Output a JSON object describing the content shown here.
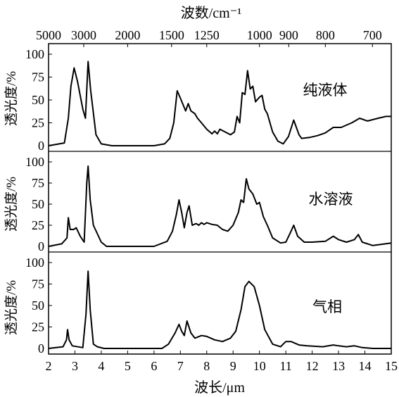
{
  "chart_data": {
    "type": "line",
    "top_axis": {
      "label": "波数/cm⁻¹",
      "ticks": [
        5000,
        3000,
        2000,
        1500,
        1250,
        1000,
        900,
        800,
        700
      ],
      "tick_labels": [
        "5000",
        "3000",
        "2000",
        "1500",
        "1250",
        "1000",
        "900",
        "800",
        "700"
      ]
    },
    "x_axis": {
      "label": "波长/μm",
      "range": [
        2,
        15
      ],
      "ticks": [
        2,
        3,
        4,
        5,
        6,
        7,
        8,
        9,
        10,
        11,
        12,
        13,
        14,
        15
      ],
      "tick_labels": [
        "2",
        "3",
        "4",
        "5",
        "6",
        "7",
        "8",
        "9",
        "10",
        "11",
        "12",
        "13",
        "14",
        "15"
      ]
    },
    "panels": [
      {
        "name": "纯液体",
        "ylabel": "透光度/%",
        "ylim": [
          0,
          100
        ],
        "yticks": [
          0,
          25,
          50,
          75,
          100
        ],
        "ytick_labels": [
          "0",
          "25",
          "50",
          "75",
          "100"
        ],
        "points": [
          [
            2.0,
            0
          ],
          [
            2.6,
            3
          ],
          [
            2.75,
            30
          ],
          [
            2.85,
            65
          ],
          [
            2.97,
            85
          ],
          [
            3.1,
            70
          ],
          [
            3.3,
            40
          ],
          [
            3.4,
            30
          ],
          [
            3.5,
            92
          ],
          [
            3.6,
            60
          ],
          [
            3.8,
            12
          ],
          [
            4.0,
            2
          ],
          [
            4.4,
            0
          ],
          [
            6.0,
            0
          ],
          [
            6.4,
            2
          ],
          [
            6.6,
            8
          ],
          [
            6.75,
            25
          ],
          [
            6.88,
            60
          ],
          [
            7.0,
            52
          ],
          [
            7.2,
            38
          ],
          [
            7.3,
            46
          ],
          [
            7.4,
            38
          ],
          [
            7.55,
            35
          ],
          [
            7.65,
            30
          ],
          [
            7.8,
            25
          ],
          [
            8.0,
            18
          ],
          [
            8.2,
            13
          ],
          [
            8.3,
            16
          ],
          [
            8.4,
            13
          ],
          [
            8.5,
            18
          ],
          [
            8.7,
            15
          ],
          [
            8.9,
            12
          ],
          [
            9.05,
            15
          ],
          [
            9.15,
            32
          ],
          [
            9.25,
            25
          ],
          [
            9.35,
            58
          ],
          [
            9.45,
            56
          ],
          [
            9.55,
            82
          ],
          [
            9.65,
            62
          ],
          [
            9.75,
            65
          ],
          [
            9.85,
            48
          ],
          [
            10.0,
            53
          ],
          [
            10.1,
            55
          ],
          [
            10.2,
            40
          ],
          [
            10.3,
            35
          ],
          [
            10.5,
            15
          ],
          [
            10.7,
            5
          ],
          [
            10.9,
            2
          ],
          [
            11.1,
            10
          ],
          [
            11.3,
            28
          ],
          [
            11.5,
            12
          ],
          [
            11.6,
            8
          ],
          [
            11.9,
            9
          ],
          [
            12.2,
            11
          ],
          [
            12.5,
            14
          ],
          [
            12.8,
            20
          ],
          [
            13.1,
            20
          ],
          [
            13.5,
            25
          ],
          [
            13.8,
            30
          ],
          [
            14.1,
            27
          ],
          [
            14.5,
            30
          ],
          [
            14.8,
            32
          ],
          [
            15.0,
            32
          ]
        ]
      },
      {
        "name": "水溶液",
        "ylabel": "透光度/%",
        "ylim": [
          0,
          100
        ],
        "yticks": [
          0,
          25,
          50,
          75,
          100
        ],
        "ytick_labels": [
          "0",
          "25",
          "50",
          "75",
          "100"
        ],
        "points": [
          [
            2.0,
            0
          ],
          [
            2.5,
            3
          ],
          [
            2.7,
            10
          ],
          [
            2.75,
            34
          ],
          [
            2.82,
            20
          ],
          [
            2.95,
            20
          ],
          [
            3.05,
            22
          ],
          [
            3.2,
            12
          ],
          [
            3.35,
            5
          ],
          [
            3.45,
            75
          ],
          [
            3.5,
            95
          ],
          [
            3.58,
            55
          ],
          [
            3.7,
            25
          ],
          [
            3.85,
            15
          ],
          [
            4.0,
            5
          ],
          [
            4.2,
            0
          ],
          [
            6.0,
            0
          ],
          [
            6.5,
            6
          ],
          [
            6.7,
            18
          ],
          [
            6.85,
            38
          ],
          [
            6.95,
            55
          ],
          [
            7.05,
            40
          ],
          [
            7.15,
            22
          ],
          [
            7.25,
            40
          ],
          [
            7.33,
            48
          ],
          [
            7.45,
            25
          ],
          [
            7.6,
            27
          ],
          [
            7.7,
            25
          ],
          [
            7.8,
            28
          ],
          [
            7.9,
            26
          ],
          [
            8.0,
            28
          ],
          [
            8.2,
            26
          ],
          [
            8.4,
            25
          ],
          [
            8.6,
            20
          ],
          [
            8.8,
            18
          ],
          [
            9.0,
            25
          ],
          [
            9.2,
            40
          ],
          [
            9.3,
            55
          ],
          [
            9.4,
            52
          ],
          [
            9.5,
            80
          ],
          [
            9.6,
            68
          ],
          [
            9.75,
            62
          ],
          [
            9.9,
            50
          ],
          [
            10.0,
            52
          ],
          [
            10.15,
            35
          ],
          [
            10.3,
            25
          ],
          [
            10.5,
            10
          ],
          [
            10.8,
            4
          ],
          [
            11.0,
            5
          ],
          [
            11.2,
            18
          ],
          [
            11.3,
            25
          ],
          [
            11.45,
            12
          ],
          [
            11.7,
            5
          ],
          [
            12.0,
            5
          ],
          [
            12.5,
            6
          ],
          [
            12.8,
            12
          ],
          [
            13.0,
            8
          ],
          [
            13.3,
            5
          ],
          [
            13.6,
            8
          ],
          [
            13.75,
            14
          ],
          [
            13.9,
            5
          ],
          [
            14.3,
            1
          ],
          [
            15.0,
            4
          ]
        ]
      },
      {
        "name": "气相",
        "ylabel": "透光度/%",
        "ylim": [
          0,
          100
        ],
        "yticks": [
          0,
          25,
          50,
          75,
          100
        ],
        "ytick_labels": [
          "0",
          "25",
          "50",
          "75",
          "100"
        ],
        "points": [
          [
            2.0,
            0
          ],
          [
            2.55,
            2
          ],
          [
            2.68,
            10
          ],
          [
            2.72,
            22
          ],
          [
            2.78,
            10
          ],
          [
            2.9,
            3
          ],
          [
            3.3,
            1
          ],
          [
            3.42,
            40
          ],
          [
            3.5,
            90
          ],
          [
            3.58,
            45
          ],
          [
            3.7,
            5
          ],
          [
            3.85,
            2
          ],
          [
            4.1,
            0
          ],
          [
            6.3,
            0
          ],
          [
            6.55,
            5
          ],
          [
            6.8,
            18
          ],
          [
            6.95,
            28
          ],
          [
            7.05,
            20
          ],
          [
            7.15,
            15
          ],
          [
            7.25,
            32
          ],
          [
            7.4,
            18
          ],
          [
            7.55,
            12
          ],
          [
            7.8,
            15
          ],
          [
            8.0,
            14
          ],
          [
            8.3,
            10
          ],
          [
            8.6,
            8
          ],
          [
            8.9,
            12
          ],
          [
            9.1,
            20
          ],
          [
            9.3,
            45
          ],
          [
            9.45,
            72
          ],
          [
            9.6,
            78
          ],
          [
            9.8,
            72
          ],
          [
            10.0,
            50
          ],
          [
            10.2,
            22
          ],
          [
            10.5,
            5
          ],
          [
            10.8,
            2
          ],
          [
            11.0,
            8
          ],
          [
            11.2,
            8
          ],
          [
            11.5,
            4
          ],
          [
            11.8,
            3
          ],
          [
            12.4,
            2
          ],
          [
            12.8,
            4
          ],
          [
            13.0,
            3
          ],
          [
            13.3,
            2
          ],
          [
            13.6,
            3
          ],
          [
            13.9,
            1
          ],
          [
            14.3,
            0
          ],
          [
            15.0,
            0
          ]
        ]
      }
    ]
  }
}
